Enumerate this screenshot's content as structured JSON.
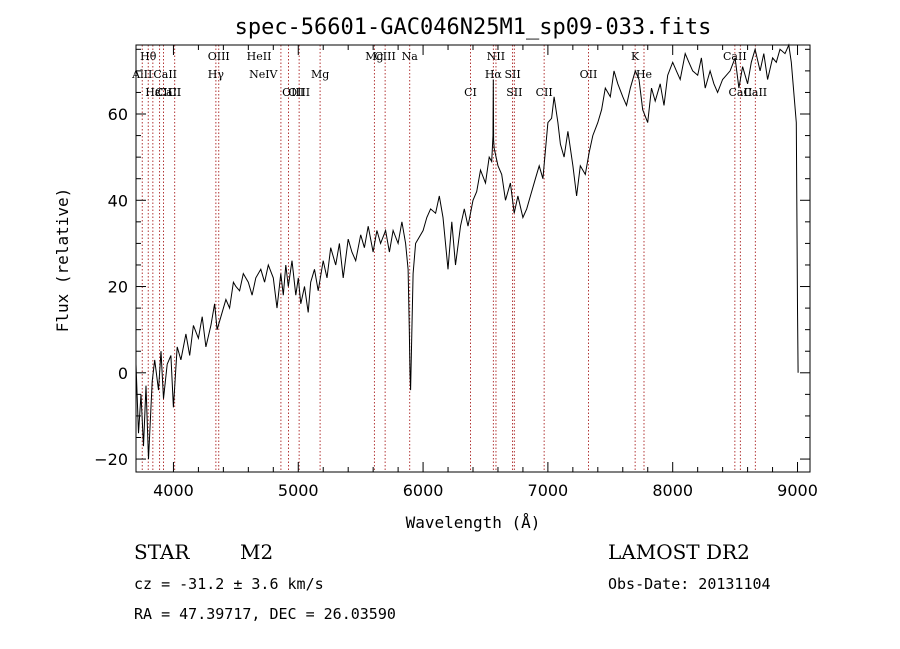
{
  "chart_data": {
    "type": "line",
    "title": "spec-56601-GAC046N25M1_sp09-033.fits",
    "xlabel": "Wavelength (Å)",
    "ylabel": "Flux (relative)",
    "xlim": [
      3700,
      9100
    ],
    "ylim": [
      -23,
      76
    ],
    "x_ticks": [
      4000,
      5000,
      6000,
      7000,
      8000,
      9000
    ],
    "y_ticks": [
      -20,
      0,
      20,
      40,
      60
    ],
    "grid": false,
    "series": [
      {
        "color": "#000000",
        "x": [
          3700,
          3720,
          3740,
          3760,
          3780,
          3800,
          3830,
          3850,
          3880,
          3900,
          3920,
          3950,
          3980,
          4000,
          4030,
          4060,
          4100,
          4130,
          4160,
          4200,
          4230,
          4260,
          4300,
          4330,
          4350,
          4380,
          4420,
          4450,
          4480,
          4500,
          4530,
          4560,
          4600,
          4630,
          4660,
          4700,
          4730,
          4760,
          4800,
          4830,
          4860,
          4880,
          4900,
          4920,
          4950,
          4980,
          5000,
          5020,
          5050,
          5080,
          5100,
          5130,
          5160,
          5200,
          5230,
          5260,
          5300,
          5330,
          5360,
          5400,
          5430,
          5460,
          5500,
          5530,
          5560,
          5600,
          5630,
          5660,
          5700,
          5730,
          5760,
          5800,
          5830,
          5860,
          5880,
          5890,
          5895,
          5900,
          5910,
          5920,
          5940,
          5960,
          6000,
          6030,
          6060,
          6100,
          6130,
          6160,
          6200,
          6230,
          6260,
          6300,
          6330,
          6360,
          6400,
          6430,
          6460,
          6500,
          6530,
          6550,
          6560,
          6563,
          6565,
          6570,
          6600,
          6630,
          6660,
          6700,
          6730,
          6760,
          6800,
          6830,
          6860,
          6900,
          6930,
          6960,
          7000,
          7030,
          7050,
          7080,
          7100,
          7130,
          7160,
          7200,
          7230,
          7260,
          7300,
          7330,
          7360,
          7400,
          7430,
          7460,
          7500,
          7530,
          7560,
          7600,
          7630,
          7660,
          7700,
          7730,
          7760,
          7800,
          7830,
          7860,
          7900,
          7930,
          7960,
          8000,
          8030,
          8060,
          8100,
          8130,
          8160,
          8200,
          8230,
          8260,
          8300,
          8330,
          8360,
          8400,
          8430,
          8460,
          8500,
          8530,
          8560,
          8600,
          8630,
          8660,
          8700,
          8730,
          8760,
          8800,
          8830,
          8860,
          8900,
          8930,
          8950,
          8970,
          8990,
          9000,
          9005
        ],
        "y": [
          2,
          -14,
          -5,
          -17,
          -3,
          -20,
          -2,
          3,
          -4,
          5,
          -6,
          2,
          4,
          -8,
          6,
          3,
          9,
          4,
          11,
          8,
          13,
          6,
          11,
          16,
          10,
          13,
          17,
          15,
          21,
          20,
          19,
          23,
          21,
          18,
          22,
          24,
          21,
          25,
          22,
          15,
          23,
          18,
          25,
          20,
          26,
          18,
          22,
          16,
          20,
          14,
          21,
          24,
          19,
          26,
          22,
          29,
          25,
          30,
          22,
          31,
          28,
          26,
          32,
          29,
          34,
          28,
          33,
          30,
          33,
          28,
          33,
          30,
          35,
          30,
          24,
          10,
          0,
          -4,
          9,
          23,
          30,
          31,
          33,
          36,
          38,
          37,
          41,
          36,
          24,
          35,
          25,
          34,
          38,
          34,
          40,
          42,
          47,
          44,
          50,
          49,
          55,
          68,
          54,
          52,
          48,
          46,
          40,
          44,
          37,
          41,
          36,
          38,
          41,
          45,
          48,
          45,
          58,
          59,
          64,
          58,
          53,
          50,
          56,
          48,
          41,
          48,
          46,
          51,
          55,
          58,
          61,
          66,
          64,
          70,
          67,
          64,
          62,
          66,
          70,
          68,
          61,
          58,
          66,
          63,
          67,
          62,
          69,
          72,
          70,
          68,
          74,
          72,
          70,
          69,
          73,
          66,
          70,
          67,
          65,
          68,
          69,
          70,
          73,
          66,
          71,
          67,
          72,
          75,
          70,
          74,
          68,
          73,
          72,
          75,
          74,
          76,
          72,
          65,
          58,
          15,
          0
        ]
      }
    ],
    "line_markers": [
      {
        "label": "Hθ",
        "x": 3798,
        "row": 1
      },
      {
        "label": "AlII",
        "x": 3750,
        "row": 2
      },
      {
        "label": "CaII",
        "x": 3934,
        "row": 2
      },
      {
        "label": "CaII",
        "x": 3968,
        "row": 3
      },
      {
        "label": "Hε",
        "x": 3835,
        "row": 3
      },
      {
        "label": "CII",
        "x": 3920,
        "row": 3
      },
      {
        "label": "CI",
        "x": 4010,
        "row": 3
      },
      {
        "label": "OIII",
        "x": 4363,
        "row": 1
      },
      {
        "label": "Hγ",
        "x": 4340,
        "row": 2
      },
      {
        "label": "HeII",
        "x": 4686,
        "row": 1
      },
      {
        "label": "NeIV",
        "x": 4720,
        "row": 2
      },
      {
        "label": "OIII",
        "x": 4959,
        "row": 3
      },
      {
        "label": "OIII",
        "x": 5007,
        "row": 3
      },
      {
        "label": "Mg",
        "x": 5175,
        "row": 2
      },
      {
        "label": "Mg",
        "x": 5610,
        "row": 1
      },
      {
        "label": "CIII",
        "x": 5696,
        "row": 1
      },
      {
        "label": "Na",
        "x": 5893,
        "row": 1
      },
      {
        "label": "CI",
        "x": 6380,
        "row": 3
      },
      {
        "label": "NII",
        "x": 6584,
        "row": 1
      },
      {
        "label": "Hα",
        "x": 6563,
        "row": 2
      },
      {
        "label": "SII",
        "x": 6717,
        "row": 2
      },
      {
        "label": "SII",
        "x": 6731,
        "row": 3
      },
      {
        "label": "CII",
        "x": 6970,
        "row": 3
      },
      {
        "label": "OII",
        "x": 7325,
        "row": 2
      },
      {
        "label": "K",
        "x": 7699,
        "row": 1
      },
      {
        "label": "He",
        "x": 7770,
        "row": 2
      },
      {
        "label": "CaII",
        "x": 8498,
        "row": 1
      },
      {
        "label": "CaII",
        "x": 8542,
        "row": 3
      },
      {
        "label": "CaII",
        "x": 8662,
        "row": 3
      }
    ],
    "marker_lines_x": [
      3750,
      3798,
      3835,
      3889,
      3920,
      4010,
      4340,
      4363,
      4861,
      4922,
      5007,
      5175,
      5610,
      5696,
      5893,
      6380,
      6563,
      6584,
      6717,
      6731,
      6970,
      7325,
      7699,
      7770,
      8498,
      8542,
      8662
    ]
  },
  "info": {
    "object_type": "STAR",
    "subclass": "M2",
    "survey": "LAMOST DR2",
    "redshift": "cz = -31.2 ± 3.6 km/s",
    "obs_date": "Obs-Date: 20131104",
    "coords": "RA =  47.39717, DEC =  26.03590"
  }
}
